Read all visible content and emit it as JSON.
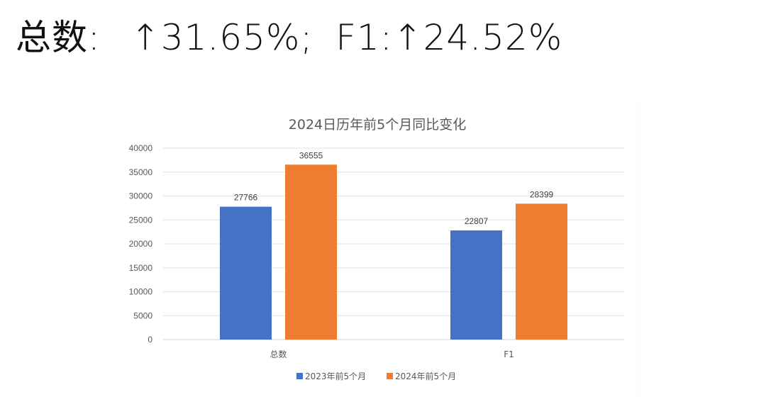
{
  "headline": {
    "total_label": "总数:",
    "arrow": "↑",
    "total_change": "31.65%;",
    "f1_label": "F1:",
    "f1_change": "24.52%"
  },
  "chart_data": {
    "type": "bar",
    "title": "2024日历年前5个月同比变化",
    "categories": [
      "总数",
      "F1"
    ],
    "series": [
      {
        "name": "2023年前5个月",
        "values": [
          27766,
          22807
        ],
        "color": "#4472C4"
      },
      {
        "name": "2024年前5个月",
        "values": [
          36555,
          28399
        ],
        "color": "#ED7D31"
      }
    ],
    "ylim": [
      0,
      40000
    ],
    "yticks": [
      0,
      5000,
      10000,
      15000,
      20000,
      25000,
      30000,
      35000,
      40000
    ],
    "grid": true,
    "legend_position": "bottom",
    "data_labels": true,
    "xlabel": "",
    "ylabel": ""
  }
}
